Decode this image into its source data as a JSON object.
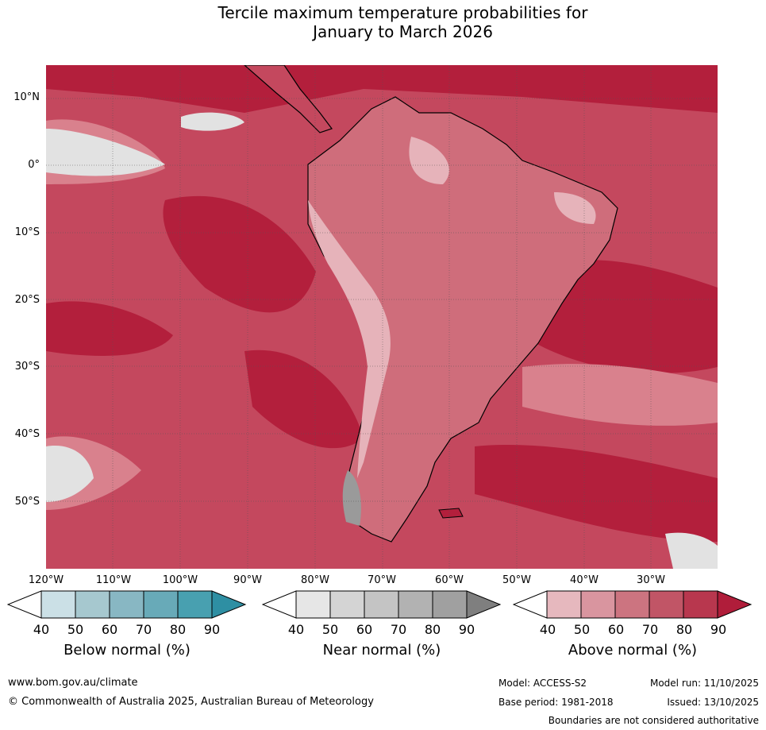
{
  "title_line1": "Tercile maximum temperature probabilities for",
  "title_line2": "January to March 2026",
  "map": {
    "name": "Forecast map of South America and surrounding oceans",
    "colors": {
      "ocean_dark": "#b31f3c",
      "ocean_mid": "#c8475c",
      "light_red": "#d9818d",
      "pale_pink": "#e6b3ba",
      "near_normal_light": "#e2e2e2",
      "near_normal_mid": "#c7c7c7",
      "coastline": "#000000",
      "border": "#888888"
    }
  },
  "lat_labels": [
    "10°N",
    "0°",
    "10°S",
    "20°S",
    "30°S",
    "40°S",
    "50°S"
  ],
  "lon_labels": [
    "120°W",
    "110°W",
    "100°W",
    "90°W",
    "80°W",
    "70°W",
    "60°W",
    "50°W",
    "40°W",
    "30°W"
  ],
  "colorbars": [
    {
      "title": "Below normal (%)",
      "ticks": [
        "40",
        "50",
        "60",
        "70",
        "80",
        "90"
      ],
      "colors": [
        "#ffffff",
        "#cbe0e6",
        "#a6c8cf",
        "#88b7c3",
        "#68aab8",
        "#48a0b0",
        "#2e8fa3"
      ]
    },
    {
      "title": "Near normal (%)",
      "ticks": [
        "40",
        "50",
        "60",
        "70",
        "80",
        "90"
      ],
      "colors": [
        "#ffffff",
        "#e6e6e6",
        "#d4d4d4",
        "#c4c4c4",
        "#b2b2b2",
        "#a0a0a0",
        "#7f7f7f"
      ]
    },
    {
      "title": "Above normal (%)",
      "ticks": [
        "40",
        "50",
        "60",
        "70",
        "80",
        "90"
      ],
      "colors": [
        "#ffffff",
        "#e6b8be",
        "#d9959f",
        "#cc7480",
        "#c15566",
        "#b8374e",
        "#b01d3a"
      ]
    }
  ],
  "footer": {
    "website": "www.bom.gov.au/climate",
    "copyright": "© Commonwealth of Australia 2025, Australian Bureau of Meteorology",
    "model": "Model: ACCESS-S2",
    "base_period": "Base period: 1981-2018",
    "model_run": "Model run: 11/10/2025",
    "issued": "Issued: 13/10/2025",
    "disclaimer": "Boundaries are not considered authoritative"
  }
}
